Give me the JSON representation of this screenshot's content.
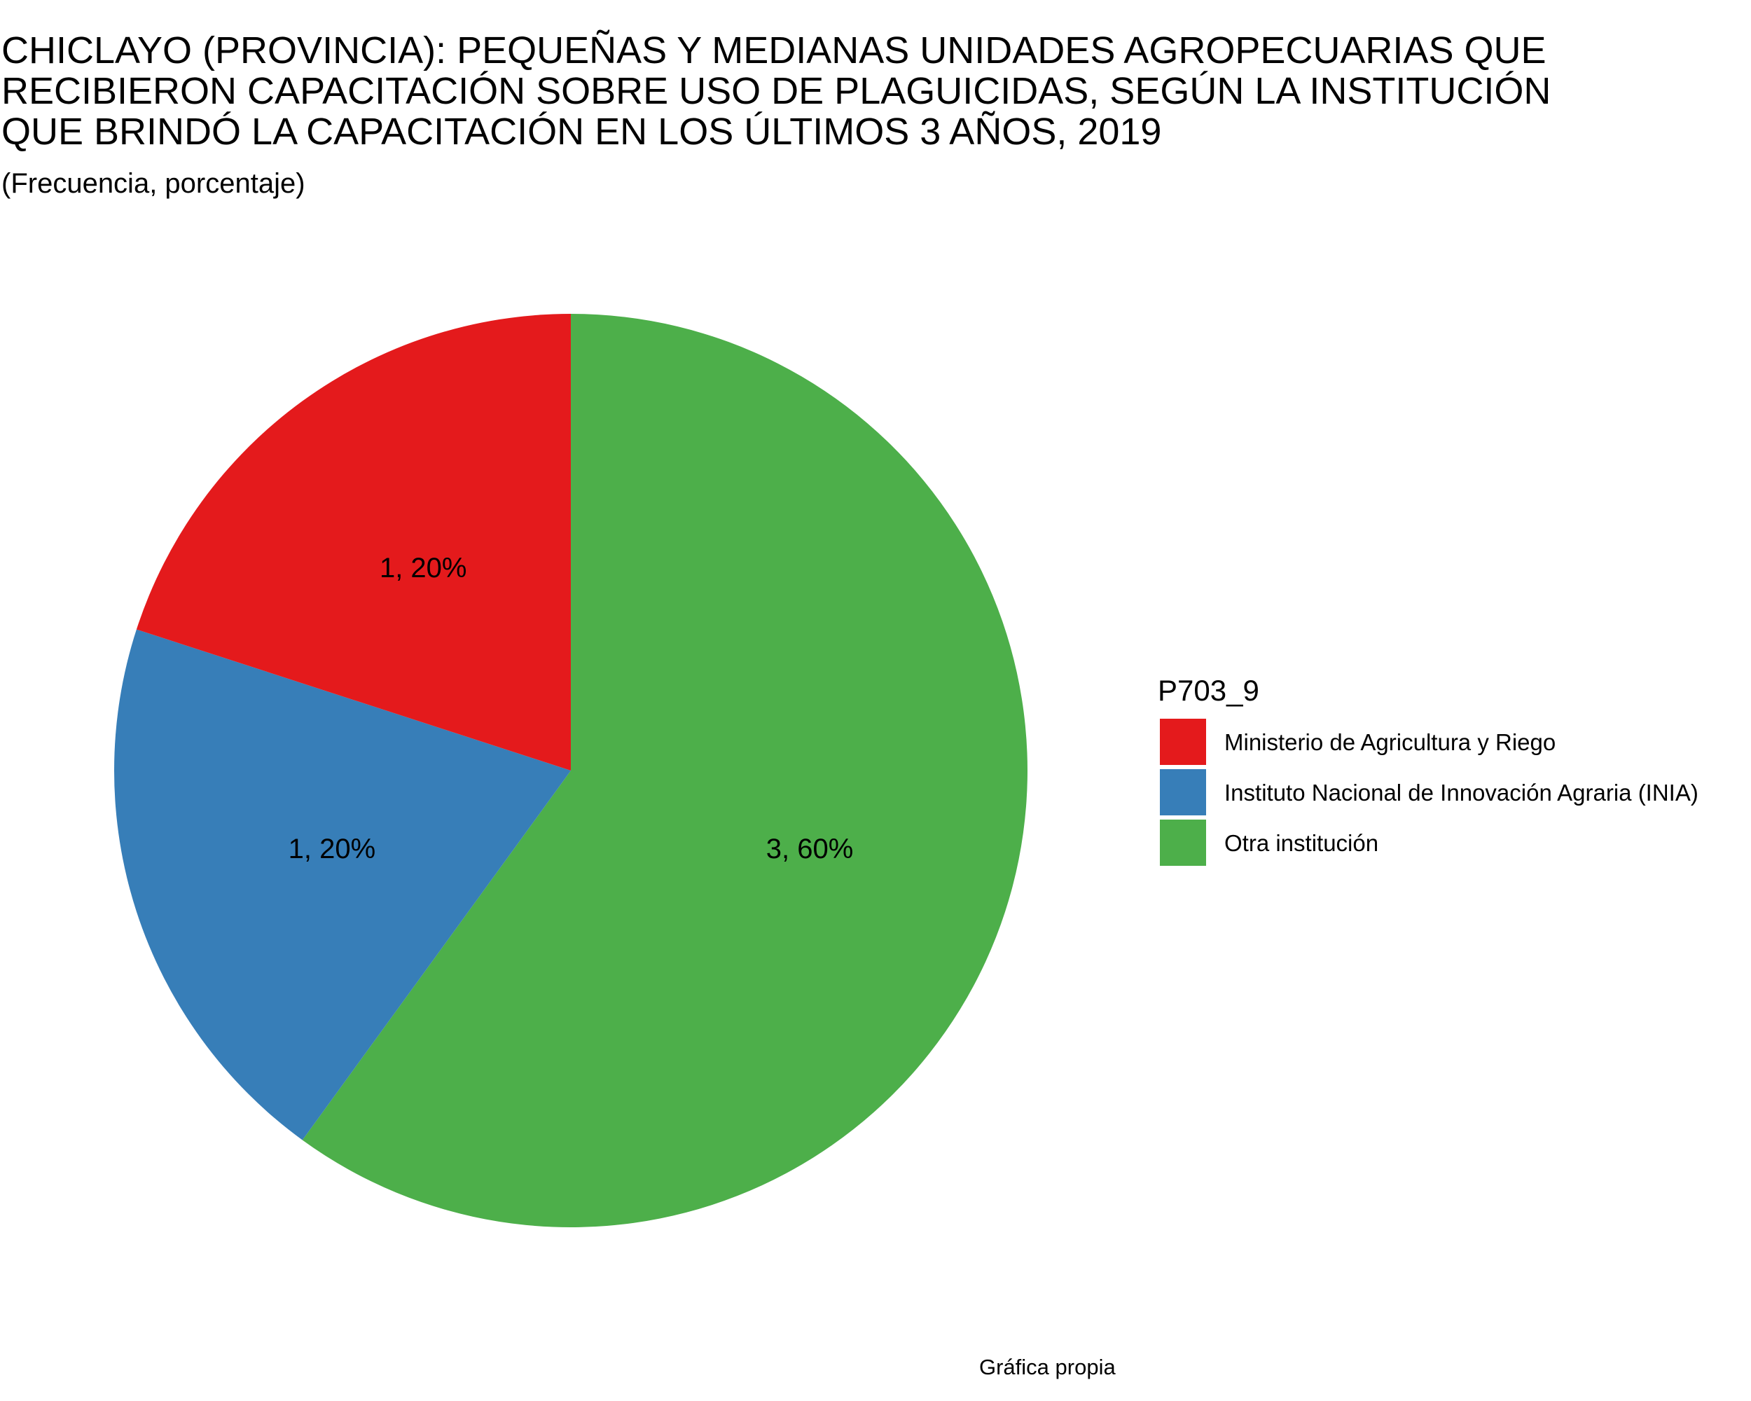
{
  "chart_data": {
    "type": "pie",
    "title_lines": [
      "CHICLAYO (PROVINCIA): PEQUEÑAS Y MEDIANAS UNIDADES AGROPECUARIAS QUE",
      "RECIBIERON CAPACITACIÓN SOBRE USO DE PLAGUICIDAS, SEGÚN LA INSTITUCIÓN",
      "QUE BRINDÓ LA CAPACITACIÓN EN LOS ÚLTIMOS 3 AÑOS, 2019"
    ],
    "subtitle": "(Frecuencia, porcentaje)",
    "legend_title": "P703_9",
    "legend_position": "right",
    "categories": [
      "Ministerio de Agricultura y Riego",
      "Instituto Nacional de Innovación Agraria (INIA)",
      "Otra institución"
    ],
    "values": [
      1,
      1,
      3
    ],
    "percentages": [
      20,
      20,
      60
    ],
    "labels": [
      "1, 20%",
      "1, 20%",
      "3, 60%"
    ],
    "colors": [
      "#E41A1C",
      "#377EB8",
      "#4DAF4A"
    ],
    "caption": "Gráfica propia"
  }
}
